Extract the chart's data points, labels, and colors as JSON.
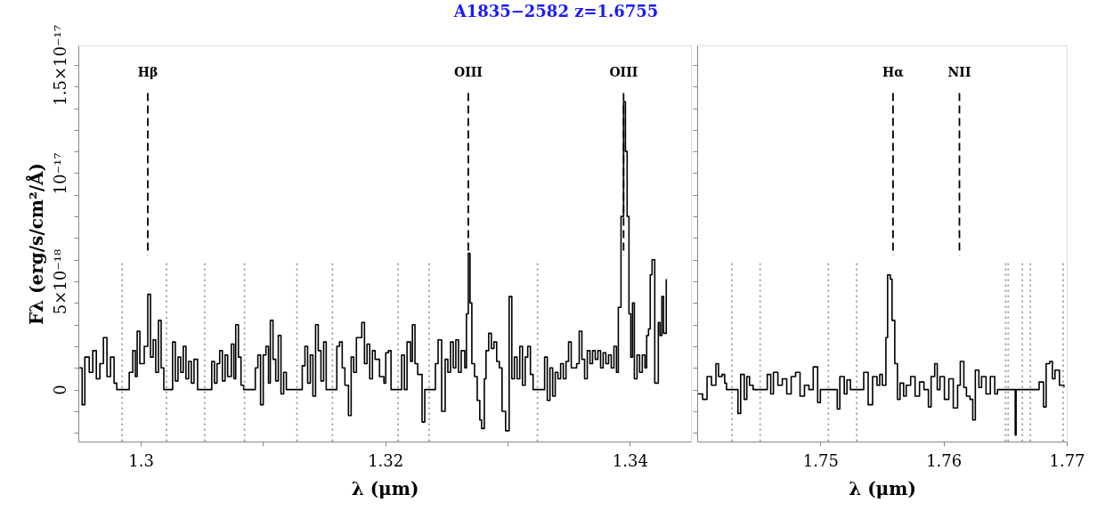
{
  "chart_data": [
    {
      "type": "step",
      "title": "A1835−2582 z=1.6755",
      "xlabel": "λ (μm)",
      "ylabel": "Fλ (erg/s/cm²/Å)",
      "x": [
        1.29499,
        1.29521,
        1.29543,
        1.29579,
        1.29608,
        1.29637,
        1.29666,
        1.29695,
        1.29724,
        1.29753,
        1.29782,
        1.29804,
        1.29884,
        1.29906,
        1.29935,
        1.29956,
        1.29971,
        1.29993,
        1.30029,
        1.30058,
        1.3008,
        1.30102,
        1.30123,
        1.30145,
        1.30167,
        1.30189,
        1.30247,
        1.30261,
        1.30283,
        1.30305,
        1.30327,
        1.30348,
        1.3037,
        1.30392,
        1.30414,
        1.30436,
        1.30465,
        1.30559,
        1.30581,
        1.30603,
        1.30624,
        1.30646,
        1.30668,
        1.3069,
        1.30711,
        1.30741,
        1.30762,
        1.30777,
        1.30799,
        1.3082,
        1.30842,
        1.30915,
        1.30937,
        1.30958,
        1.3098,
        1.31002,
        1.31024,
        1.31045,
        1.3106,
        1.31082,
        1.31104,
        1.31125,
        1.31147,
        1.31169,
        1.31191,
        1.313,
        1.31321,
        1.31343,
        1.31365,
        1.31387,
        1.31408,
        1.3143,
        1.31452,
        1.31474,
        1.31496,
        1.31517,
        1.3159,
        1.31604,
        1.31626,
        1.31648,
        1.3167,
        1.31699,
        1.31721,
        1.31742,
        1.31764,
        1.31808,
        1.3183,
        1.31851,
        1.31873,
        1.31895,
        1.31917,
        1.31953,
        1.31989,
        1.32004,
        1.32026,
        1.32047,
        1.32105,
        1.32134,
        1.32156,
        1.32178,
        1.32207,
        1.32222,
        1.32243,
        1.32265,
        1.32301,
        1.32323,
        1.32389,
        1.3241,
        1.32432,
        1.32461,
        1.3249,
        1.32512,
        1.32534,
        1.32556,
        1.32577,
        1.32599,
        1.32621,
        1.3265,
        1.32664,
        1.32679,
        1.32693,
        1.32708,
        1.3273,
        1.32752,
        1.32773,
        1.32788,
        1.3281,
        1.32824,
        1.32846,
        1.32868,
        1.32889,
        1.32911,
        1.32933,
        1.32955,
        1.32984,
        1.33013,
        1.33035,
        1.33056,
        1.33078,
        1.331,
        1.33122,
        1.33144,
        1.33165,
        1.33187,
        1.33209,
        1.33282,
        1.33303,
        1.33325,
        1.33347,
        1.33369,
        1.3339,
        1.33412,
        1.33434,
        1.33456,
        1.33478,
        1.33499,
        1.33521,
        1.33565,
        1.33586,
        1.33608,
        1.3363,
        1.33652,
        1.33674,
        1.33695,
        1.33717,
        1.33739,
        1.33761,
        1.33782,
        1.33804,
        1.33826,
        1.33848,
        1.3387,
        1.33891,
        1.33906,
        1.33928,
        1.33949,
        1.33964,
        1.33978,
        1.33993,
        1.34008,
        1.34022,
        1.34037,
        1.34059,
        1.3408,
        1.34102,
        1.34124,
        1.34138,
        1.34153,
        1.34167,
        1.34182,
        1.34204,
        1.34233,
        1.34247,
        1.34262,
        1.34276,
        1.34298
      ],
      "series": [
        {
          "color": "#000000",
          "values": [
            1e-18,
            -7e-19,
            1.5e-18,
            8e-19,
            1.8e-18,
            5e-19,
            1.2e-18,
            2.4e-18,
            6e-19,
            1.5e-18,
            3e-19,
            0,
            0,
            8e-19,
            1.8e-18,
            6e-19,
            2.7e-18,
            1.2e-18,
            2e-18,
            4.4e-18,
            1.5e-18,
            2.3e-18,
            8e-19,
            3.2e-18,
            1e-18,
            0,
            0,
            2.2e-18,
            4e-19,
            1.5e-18,
            8e-19,
            2e-18,
            5e-19,
            1.3e-18,
            3e-19,
            1.4e-18,
            0,
            0,
            1.3e-18,
            3e-19,
            1.2e-18,
            1.8e-18,
            4e-19,
            1.6e-18,
            6e-19,
            2.1e-18,
            5e-19,
            3e-18,
            1.5e-18,
            2e-19,
            0,
            0,
            1e-18,
            1.6e-18,
            -7e-19,
            1.6e-18,
            2e-18,
            3e-19,
            3.2e-18,
            1.4e-18,
            4e-19,
            2.5e-18,
            -2e-19,
            8e-19,
            0,
            0,
            1.1e-18,
            2e-18,
            3e-19,
            1.6e-18,
            -3e-19,
            3e-18,
            1.8e-18,
            4e-19,
            2.2e-18,
            0,
            0,
            2e-18,
            2.2e-18,
            1e-18,
            2e-19,
            -1.2e-18,
            1.5e-18,
            8e-19,
            2.4e-18,
            3.1e-18,
            1.2e-18,
            2.1e-18,
            5e-19,
            1.8e-18,
            1.4e-18,
            6e-19,
            3e-19,
            1.7e-18,
            1.8e-18,
            0,
            0,
            1.6e-18,
            0,
            2.2e-18,
            1.3e-18,
            3e-18,
            1.2e-18,
            7e-19,
            -1.5e-18,
            0,
            0,
            1.2e-18,
            2.3e-18,
            -1e-18,
            1.4e-18,
            8e-19,
            2.2e-18,
            1e-18,
            2.3e-18,
            8e-19,
            1.8e-18,
            1e-18,
            3.5e-18,
            6.3e-18,
            4e-18,
            1.2e-18,
            6e-19,
            -5e-19,
            -1.4e-18,
            -1.8e-18,
            5e-19,
            1.8e-18,
            2.6e-18,
            1.9e-18,
            2.2e-18,
            1.3e-18,
            1e-18,
            -1e-18,
            -1.9e-18,
            4.3e-18,
            5e-19,
            1.5e-18,
            5e-19,
            2e-18,
            2e-19,
            1.5e-18,
            2e-18,
            7e-19,
            0,
            0,
            1.5e-18,
            -5e-19,
            1e-18,
            -3e-19,
            8e-19,
            5e-19,
            1.2e-18,
            5e-19,
            1.3e-18,
            2.2e-18,
            1e-18,
            1.2e-18,
            2.7e-18,
            1.4e-18,
            5e-19,
            1.8e-18,
            1.2e-18,
            1.8e-18,
            1.4e-18,
            1.8e-18,
            1e-18,
            1.7e-18,
            1.2e-18,
            1.6e-18,
            1e-18,
            2e-18,
            8e-19,
            3.8e-18,
            8e-18,
            1.33e-17,
            1.1e-17,
            8e-18,
            3.5e-18,
            1.5e-18,
            4e-18,
            5e-19,
            1.6e-18,
            8e-19,
            1.6e-18,
            1e-18,
            2.5e-18,
            2.8e-18,
            5.3e-18,
            6e-18,
            3e-19,
            3.1e-18,
            2.5e-18,
            4.3e-18,
            2.6e-18,
            5.1e-18
          ]
        }
      ],
      "xlim": [
        1.2949,
        1.345
      ],
      "xticks": [
        1.3,
        {
          "value": 1.31,
          "label": null
        },
        1.32,
        {
          "value": 1.33,
          "label": null
        },
        1.34
      ],
      "ylim": [
        -2.4e-18,
        1.59e-17
      ],
      "yticks": [
        {
          "value": -2e-18,
          "label": null
        },
        {
          "value": -1e-18,
          "label": null
        },
        0,
        {
          "value": 1e-18,
          "label": null
        },
        {
          "value": 2e-18,
          "label": null
        },
        {
          "value": 3e-18,
          "label": null
        },
        {
          "value": 4e-18,
          "label": null
        },
        {
          "value": 5e-18,
          "label": "5×10⁻¹⁸"
        },
        {
          "value": 6e-18,
          "label": null
        },
        {
          "value": 7e-18,
          "label": null
        },
        {
          "value": 8e-18,
          "label": null
        },
        {
          "value": 9e-18,
          "label": null
        },
        {
          "value": 1e-17,
          "label": "10⁻¹⁷"
        },
        {
          "value": 1.1e-17,
          "label": null
        },
        {
          "value": 1.2e-17,
          "label": null
        },
        {
          "value": 1.3e-17,
          "label": null
        },
        {
          "value": 1.4e-17,
          "label": null
        },
        {
          "value": 1.5e-17,
          "label": "1.5×10⁻¹⁷"
        }
      ],
      "ref_lines": [
        {
          "axis": "x",
          "value": 1.29848,
          "color": "#999999",
          "line_style": "dotted"
        },
        {
          "axis": "x",
          "value": 1.30211,
          "color": "#999999",
          "line_style": "dotted"
        },
        {
          "axis": "x",
          "value": 1.30523,
          "color": "#999999",
          "line_style": "dotted"
        },
        {
          "axis": "x",
          "value": 1.30849,
          "color": "#999999",
          "line_style": "dotted"
        },
        {
          "axis": "x",
          "value": 1.31278,
          "color": "#999999",
          "line_style": "dotted"
        },
        {
          "axis": "x",
          "value": 1.31568,
          "color": "#999999",
          "line_style": "dotted"
        },
        {
          "axis": "x",
          "value": 1.32105,
          "color": "#999999",
          "line_style": "dotted"
        },
        {
          "axis": "x",
          "value": 1.32359,
          "color": "#999999",
          "line_style": "dotted"
        },
        {
          "axis": "x",
          "value": 1.33245,
          "color": "#999999",
          "line_style": "dotted"
        },
        {
          "axis": "x",
          "value": 1.30058,
          "label": "Hβ",
          "color": "#000000",
          "line_style": "dashed"
        },
        {
          "axis": "x",
          "value": 1.32679,
          "label": "OIII",
          "color": "#000000",
          "line_style": "dashed"
        },
        {
          "axis": "x",
          "value": 1.33949,
          "label": "OIII",
          "color": "#000000",
          "line_style": "dashed"
        }
      ]
    },
    {
      "type": "step",
      "xlabel": "λ (μm)",
      "tick_labels": "x",
      "x": [
        1.74008,
        1.74044,
        1.7408,
        1.74116,
        1.74152,
        1.74173,
        1.74202,
        1.74223,
        1.74238,
        1.74317,
        1.74331,
        1.74353,
        1.74382,
        1.74403,
        1.74425,
        1.74454,
        1.74547,
        1.74569,
        1.74597,
        1.74619,
        1.74655,
        1.74691,
        1.74727,
        1.74763,
        1.74799,
        1.74835,
        1.74871,
        1.74907,
        1.74942,
        1.74978,
        1.75,
        1.75122,
        1.75137,
        1.75158,
        1.75194,
        1.75216,
        1.75244,
        1.75338,
        1.75352,
        1.75388,
        1.75424,
        1.7546,
        1.75482,
        1.75503,
        1.75532,
        1.75546,
        1.75568,
        1.75582,
        1.75604,
        1.75626,
        1.75647,
        1.75676,
        1.75697,
        1.75733,
        1.75769,
        1.75805,
        1.75841,
        1.75877,
        1.75899,
        1.75928,
        1.75949,
        1.75971,
        1.76007,
        1.76043,
        1.76079,
        1.76114,
        1.76136,
        1.76165,
        1.76186,
        1.76215,
        1.76237,
        1.76258,
        1.76287,
        1.76309,
        1.76345,
        1.7638,
        1.76416,
        1.76438,
        1.76575,
        1.76582,
        1.76589,
        1.76754,
        1.76776,
        1.76812,
        1.76833,
        1.76862,
        1.76884,
        1.76905,
        1.76941,
        1.76977
      ],
      "series": [
        {
          "color": "#000000",
          "values": [
            -2e-19,
            -4.5e-19,
            6e-19,
            2e-19,
            1.2e-18,
            6e-19,
            7e-19,
            3e-19,
            0,
            0,
            -1.1e-18,
            7e-19,
            -4.5e-19,
            6e-19,
            2e-19,
            0,
            0,
            7e-19,
            -2e-19,
            8e-19,
            2e-19,
            5e-19,
            -2e-19,
            6e-19,
            8e-19,
            -3e-19,
            2e-19,
            0,
            1.05e-18,
            -6e-19,
            0,
            0,
            -9e-19,
            6e-19,
            -2e-19,
            4.5e-19,
            0,
            0,
            8e-19,
            -7e-19,
            6e-19,
            2e-19,
            7e-19,
            2e-19,
            2.4e-18,
            5.3e-18,
            5.1e-18,
            3.2e-18,
            1.2e-18,
            -4.5e-19,
            3e-19,
            -3e-19,
            2e-19,
            6e-19,
            -3e-19,
            3.5e-19,
            0,
            -8e-19,
            6e-19,
            1.2e-18,
            0,
            6e-19,
            -4.5e-19,
            5e-19,
            -8.5e-19,
            2e-19,
            1.3e-18,
            1e-19,
            -3e-19,
            -4.5e-19,
            -1.4e-18,
            9e-19,
            1e-19,
            6e-19,
            -2e-19,
            6e-19,
            -2e-19,
            0,
            0,
            -2.1e-18,
            0,
            0,
            3.5e-19,
            -8e-19,
            1.2e-18,
            1.3e-18,
            5e-19,
            9e-19,
            2e-19,
            1e-19
          ]
        }
      ],
      "xlim": [
        1.74,
        1.77
      ],
      "xticks": [
        1.75,
        1.76,
        1.77
      ],
      "ylim": [
        -2.4e-18,
        1.59e-17
      ],
      "yticks": [
        {
          "value": -2e-18,
          "label": null
        },
        {
          "value": -1e-18,
          "label": null
        },
        {
          "value": 0,
          "label": null
        },
        {
          "value": 1e-18,
          "label": null
        },
        {
          "value": 2e-18,
          "label": null
        },
        {
          "value": 3e-18,
          "label": null
        },
        {
          "value": 4e-18,
          "label": null
        },
        {
          "value": 5e-18,
          "label": null
        },
        {
          "value": 6e-18,
          "label": null
        },
        {
          "value": 7e-18,
          "label": null
        },
        {
          "value": 8e-18,
          "label": null
        },
        {
          "value": 9e-18,
          "label": null
        },
        {
          "value": 1e-17,
          "label": null
        },
        {
          "value": 1.1e-17,
          "label": null
        },
        {
          "value": 1.2e-17,
          "label": null
        },
        {
          "value": 1.3e-17,
          "label": null
        },
        {
          "value": 1.4e-17,
          "label": null
        },
        {
          "value": 1.5e-17,
          "label": null
        }
      ],
      "ref_lines": [
        {
          "axis": "x",
          "value": 1.74281,
          "color": "#999999",
          "line_style": "dotted"
        },
        {
          "axis": "x",
          "value": 1.74511,
          "color": "#999999",
          "line_style": "dotted"
        },
        {
          "axis": "x",
          "value": 1.75065,
          "color": "#999999",
          "line_style": "dotted"
        },
        {
          "axis": "x",
          "value": 1.75295,
          "color": "#999999",
          "line_style": "dotted"
        },
        {
          "axis": "x",
          "value": 1.76504,
          "color": "#999999",
          "line_style": "dotted"
        },
        {
          "axis": "x",
          "value": 1.76525,
          "color": "#999999",
          "line_style": "dotted"
        },
        {
          "axis": "x",
          "value": 1.7664,
          "color": "#999999",
          "line_style": "dotted"
        },
        {
          "axis": "x",
          "value": 1.76705,
          "color": "#999999",
          "line_style": "dotted"
        },
        {
          "axis": "x",
          "value": 1.76971,
          "color": "#999999",
          "line_style": "dotted"
        },
        {
          "axis": "x",
          "value": 1.7559,
          "label": "Hα",
          "color": "#000000",
          "line_style": "dashed"
        },
        {
          "axis": "x",
          "value": 1.76129,
          "label": "NII",
          "color": "#000000",
          "line_style": "dashed"
        }
      ]
    }
  ]
}
